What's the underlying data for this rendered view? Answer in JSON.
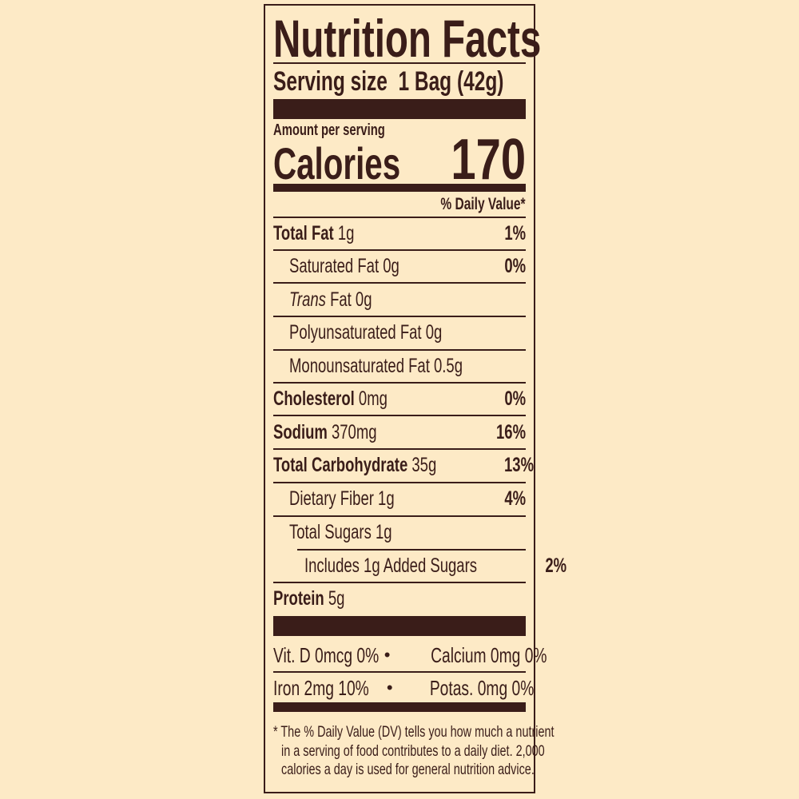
{
  "title": "Nutrition Facts",
  "serving": {
    "label": "Serving size",
    "value": "1 Bag (42g)"
  },
  "amount_per_serving": "Amount per serving",
  "calories": {
    "label": "Calories",
    "value": "170"
  },
  "daily_value_header": "% Daily Value*",
  "nutrients": [
    {
      "name": "Total Fat",
      "amount": "1g",
      "dv": "1%"
    },
    {
      "name": "Saturated Fat 0g",
      "dv": "0%"
    },
    {
      "name_italic": "Trans",
      "name": " Fat 0g"
    },
    {
      "name": "Polyunsaturated Fat 0g"
    },
    {
      "name": "Monounsaturated Fat 0.5g"
    },
    {
      "name": "Cholesterol",
      "amount": "0mg",
      "dv": "0%"
    },
    {
      "name": "Sodium",
      "amount": "370mg",
      "dv": "16%"
    },
    {
      "name": "Total Carbohydrate",
      "amount": "35g",
      "dv": "13%"
    },
    {
      "name": "Dietary Fiber 1g",
      "dv": "4%"
    },
    {
      "name": "Total Sugars 1g"
    },
    {
      "name": "Includes 1g Added Sugars",
      "dv": "2%"
    },
    {
      "name": "Protein",
      "amount": "5g"
    }
  ],
  "vitamins": [
    {
      "left": "Vit. D 0mcg 0%",
      "sep": "•",
      "right": "Calcium 0mg 0%"
    },
    {
      "left": "Iron 2mg 10%",
      "sep": "•",
      "right": "Potas. 0mg 0%"
    }
  ],
  "footnote": [
    "* The % Daily Value (DV) tells you how much a nutrient",
    "in a serving of food contributes to a daily diet. 2,000",
    "calories a day is used for general nutrition advice."
  ],
  "colors": {
    "background": "#fdeac6",
    "ink": "#3a1d19"
  }
}
